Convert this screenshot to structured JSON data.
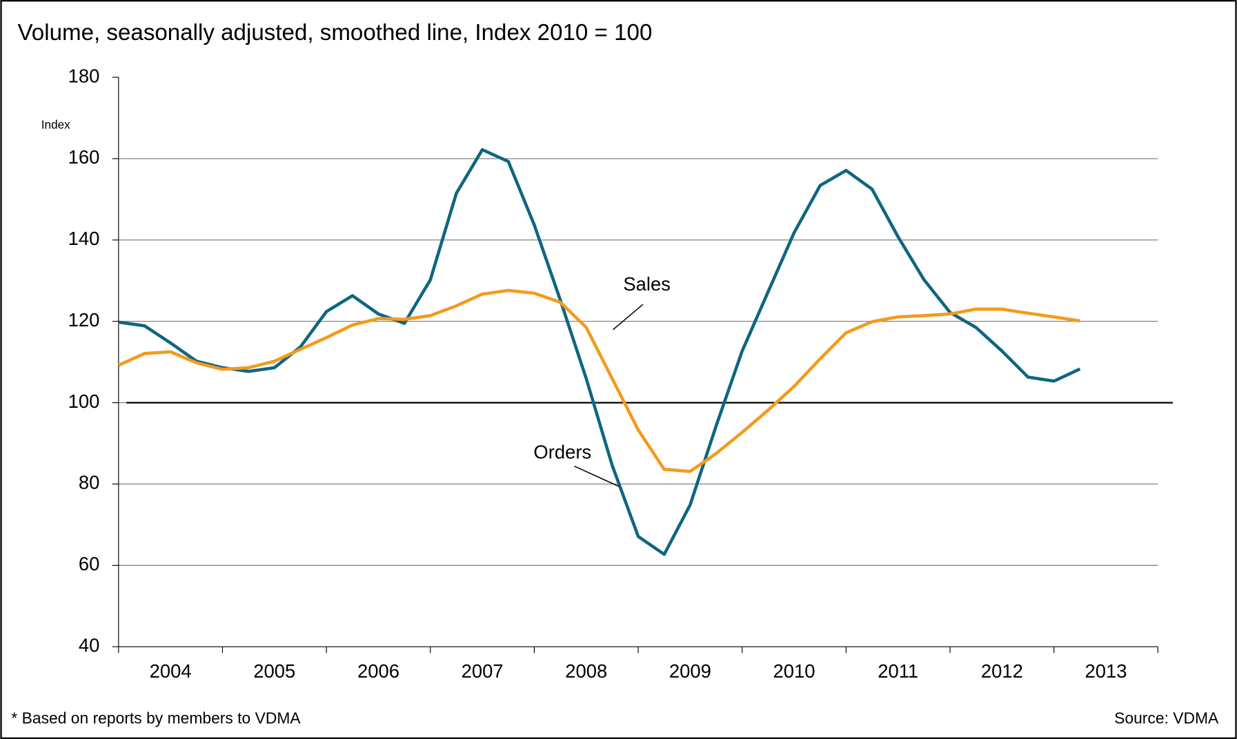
{
  "chart_data": {
    "type": "line",
    "title": "Volume, seasonally adjusted, smoothed line, Index 2010 = 100",
    "y_label": "Index",
    "footnote": "* Based on reports by members to VDMA",
    "source": "Source: VDMA",
    "x": [
      2004,
      2004.25,
      2004.5,
      2004.75,
      2005,
      2005.25,
      2005.5,
      2005.75,
      2006,
      2006.25,
      2006.5,
      2006.75,
      2007,
      2007.25,
      2007.5,
      2007.75,
      2008,
      2008.25,
      2008.5,
      2008.75,
      2009,
      2009.25,
      2009.5,
      2009.75,
      2010,
      2010.25,
      2010.5,
      2010.75,
      2011,
      2011.25,
      2011.5,
      2011.75,
      2012,
      2012.25,
      2012.5,
      2012.75,
      2013,
      2013.25
    ],
    "series": [
      {
        "name": "Orders",
        "color": "#0f6680",
        "values": [
          119.8,
          118.9,
          114.7,
          110.2,
          108.6,
          107.7,
          108.6,
          113.7,
          122.4,
          126.3,
          121.8,
          119.5,
          130.2,
          151.5,
          162.2,
          159.3,
          143.7,
          125.3,
          105.9,
          84.6,
          67.1,
          62.7,
          74.9,
          94.3,
          112.7,
          127.3,
          141.8,
          153.4,
          157.1,
          152.5,
          140.8,
          130.2,
          122.2,
          118.5,
          112.7,
          106.3,
          105.3,
          108.3
        ]
      },
      {
        "name": "Sales",
        "color": "#f39a1c",
        "values": [
          109.2,
          112.1,
          112.5,
          109.8,
          108.2,
          108.6,
          110.2,
          113.1,
          116.0,
          119.1,
          120.7,
          120.5,
          121.4,
          123.8,
          126.7,
          127.6,
          126.9,
          124.7,
          118.5,
          105.9,
          93.3,
          83.6,
          83.1,
          87.5,
          92.7,
          98.2,
          104.0,
          110.8,
          117.2,
          119.9,
          121.1,
          121.4,
          121.8,
          123.0,
          123.0,
          122.0,
          121.1,
          120.1
        ]
      }
    ],
    "reference_line": 100,
    "xlim": [
      2004,
      2014
    ],
    "xticks": [
      {
        "value": 2004.5,
        "label": "2004"
      },
      {
        "value": 2005.5,
        "label": "2005"
      },
      {
        "value": 2006.5,
        "label": "2006"
      },
      {
        "value": 2007.5,
        "label": "2007"
      },
      {
        "value": 2008.5,
        "label": "2008"
      },
      {
        "value": 2009.5,
        "label": "2009"
      },
      {
        "value": 2010.5,
        "label": "2010"
      },
      {
        "value": 2011.5,
        "label": "2011"
      },
      {
        "value": 2012.5,
        "label": "2012"
      },
      {
        "value": 2013.5,
        "label": "2013"
      }
    ],
    "ylim": [
      40,
      180
    ],
    "yticks": [
      40,
      60,
      80,
      100,
      120,
      140,
      160,
      180
    ],
    "grid": true
  }
}
